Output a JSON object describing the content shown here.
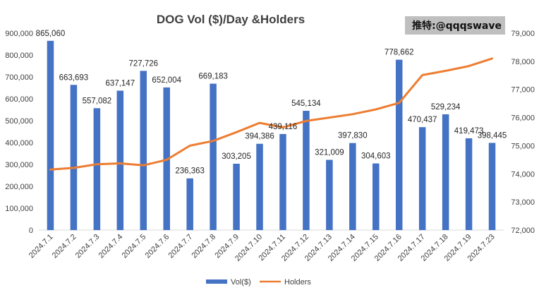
{
  "chart_data": {
    "type": "bar",
    "title": "DOG Vol ($)/Day &Holders",
    "watermark": "推特:@qqqswave",
    "categories": [
      "2024.7.1",
      "2024.7.2",
      "2024.7.3",
      "2024.7.4",
      "2024.7.5",
      "2024.7.6",
      "2024.7.7",
      "2024.7.8",
      "2024.7.9",
      "2024.7.10",
      "2024.7.11",
      "2024.7.12",
      "2024.7.13",
      "2024.7.14",
      "2024.7.15",
      "2024.7.16",
      "2024.7.17",
      "2024.7.18",
      "2024.7.19",
      "2024.7.23"
    ],
    "series": [
      {
        "name": "Vol($)",
        "type": "bar",
        "axis": "left",
        "color": "#4472C4",
        "values": [
          865060,
          663693,
          557082,
          637147,
          727726,
          652004,
          236363,
          669183,
          303205,
          394386,
          439116,
          545134,
          321009,
          397830,
          304603,
          778662,
          470437,
          529234,
          419473,
          398445
        ],
        "labels": [
          "865,060",
          "663,693",
          "557,082",
          "637,147",
          "727,726",
          "652,004",
          "236,363",
          "669,183",
          "303,205",
          "394,386",
          "439,116",
          "545,134",
          "321,009",
          "397,830",
          "304,603",
          "778,662",
          "470,437",
          "529,234",
          "419,473",
          "398,445"
        ]
      },
      {
        "name": "Holders",
        "type": "line",
        "axis": "right",
        "color": "#ED7D31",
        "values": [
          74150,
          74210,
          74340,
          74370,
          74300,
          74500,
          75000,
          75170,
          75480,
          75810,
          75650,
          75880,
          76000,
          76120,
          76290,
          76520,
          77510,
          77660,
          77830,
          78100
        ]
      }
    ],
    "y_left": {
      "min": 0,
      "max": 900000,
      "ticks": [
        "0",
        "100,000",
        "200,000",
        "300,000",
        "400,000",
        "500,000",
        "600,000",
        "700,000",
        "800,000",
        "900,000"
      ]
    },
    "y_right": {
      "min": 72000,
      "max": 79000,
      "ticks": [
        "72,000",
        "73,000",
        "74,000",
        "75,000",
        "76,000",
        "77,000",
        "78,000",
        "79,000"
      ]
    },
    "grid": false,
    "legend": "bottom-center"
  }
}
